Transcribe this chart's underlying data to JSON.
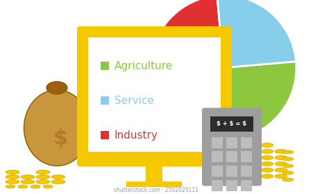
{
  "bg_color": "#ffffff",
  "monitor_border_color": "#F5C800",
  "legend_items": [
    {
      "label": "Agriculture",
      "color": "#8DC63F"
    },
    {
      "label": "Service",
      "color": "#87CEEB"
    },
    {
      "label": "Industry",
      "color": "#E03030"
    }
  ],
  "legend_label_colors": [
    "#8DC63F",
    "#87CEEB",
    "#E03030"
  ],
  "calculator_screen_text": "$ + $ = $",
  "coin_color": "#F5C800",
  "coin_edge_color": "#D4AA00",
  "bag_color": "#C8963C",
  "bag_dark_color": "#9E6010",
  "calc_body_color": "#9E9E9E",
  "calc_screen_color": "#2C2C2C",
  "calc_btn_color": "#BDBDBD",
  "watermark_text": "shutterstock.com · 2502029111",
  "watermark_color": "#999999",
  "agri_color": "#8DC63F",
  "service_color": "#87CEEB",
  "industry_color": "#E03030"
}
